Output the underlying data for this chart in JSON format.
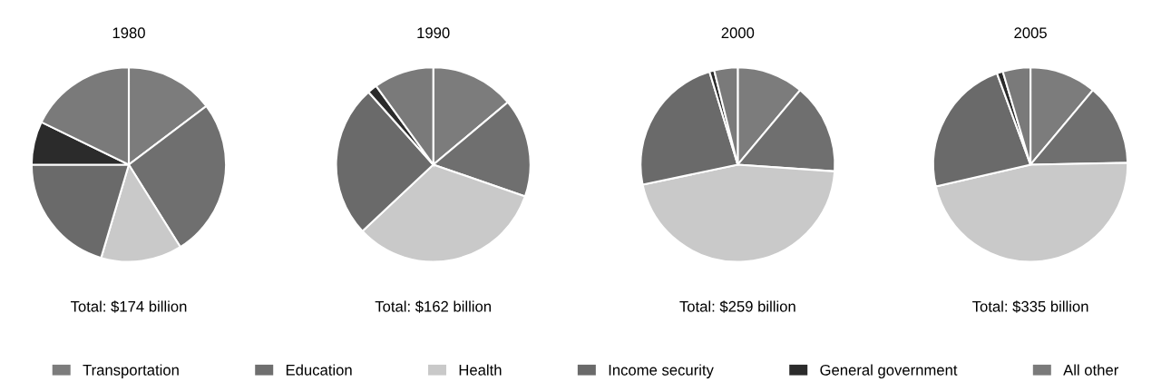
{
  "chart_data": [
    {
      "type": "pie",
      "title": "1980",
      "categories": [
        "Transportation",
        "Education",
        "Health",
        "Income security",
        "General government",
        "All other"
      ],
      "values": [
        14.7,
        26.4,
        13.5,
        20.4,
        7.2,
        17.8
      ],
      "colors": [
        "#7c7c7c",
        "#6f6f6f",
        "#c9c9c9",
        "#6a6a6a",
        "#2b2b2b",
        "#7a7a7a"
      ],
      "annotations": [
        "Total: $174 billion"
      ],
      "legend": "bottom"
    },
    {
      "type": "pie",
      "title": "1990",
      "categories": [
        null,
        null,
        null,
        null,
        null,
        null
      ],
      "values": [
        13.9,
        16.4,
        32.7,
        25.4,
        1.6,
        10.0
      ],
      "colors": [
        "#7c7c7c",
        "#6f6f6f",
        "#c9c9c9",
        "#6a6a6a",
        "#2b2b2b",
        "#7a7a7a"
      ],
      "annotations": [
        "Total: $162 billion"
      ]
    },
    {
      "type": "pie",
      "title": "2000",
      "categories": [
        null,
        null,
        null,
        null,
        null,
        null
      ],
      "values": [
        11.1,
        15.0,
        45.6,
        23.6,
        0.8,
        3.9
      ],
      "colors": [
        "#7c7c7c",
        "#6f6f6f",
        "#c9c9c9",
        "#6a6a6a",
        "#2b2b2b",
        "#7a7a7a"
      ],
      "annotations": [
        "Total: $259 billion"
      ]
    },
    {
      "type": "pie",
      "title": "2005",
      "categories": [
        null,
        null,
        null,
        null,
        null,
        null
      ],
      "values": [
        11.1,
        13.6,
        46.7,
        23.0,
        1.0,
        4.6
      ],
      "colors": [
        "#7c7c7c",
        "#6f6f6f",
        "#c9c9c9",
        "#6a6a6a",
        "#2b2b2b",
        "#7a7a7a"
      ],
      "annotations": [
        "Total: $335 billion"
      ]
    }
  ]
}
